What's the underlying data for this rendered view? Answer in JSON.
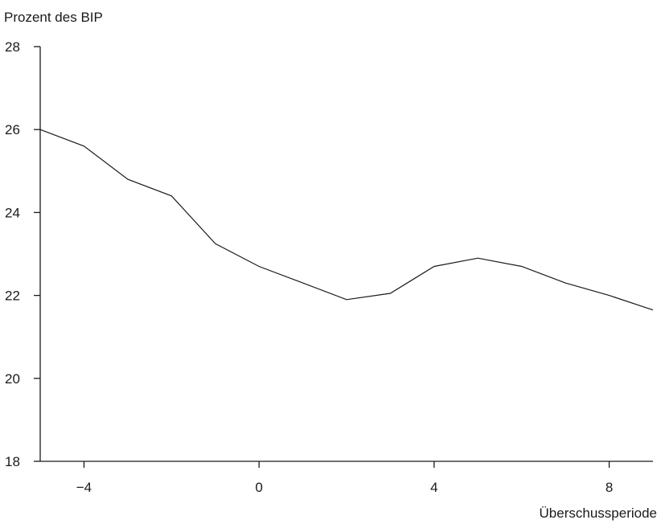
{
  "chart_data": {
    "type": "line",
    "title": "",
    "xlabel": "Überschussperiode",
    "ylabel": "Prozent des BIP",
    "xlim": [
      -5,
      9
    ],
    "ylim": [
      18,
      28
    ],
    "xticks": [
      -4,
      0,
      4,
      8
    ],
    "xtick_labels": [
      "−4",
      "0",
      "4",
      "8"
    ],
    "yticks": [
      18,
      20,
      22,
      24,
      26,
      28
    ],
    "ytick_labels": [
      "18",
      "20",
      "22",
      "24",
      "26",
      "28"
    ],
    "grid": false,
    "series": [
      {
        "x": [
          -5,
          -4,
          -3,
          -2,
          -1,
          0,
          1,
          2,
          3,
          4,
          5,
          6,
          7,
          8,
          9
        ],
        "y": [
          26.0,
          25.6,
          24.8,
          24.4,
          23.25,
          22.7,
          22.3,
          21.9,
          22.05,
          22.7,
          22.9,
          22.7,
          22.3,
          22.0,
          21.65
        ],
        "color": "#1a1a1a"
      }
    ]
  }
}
